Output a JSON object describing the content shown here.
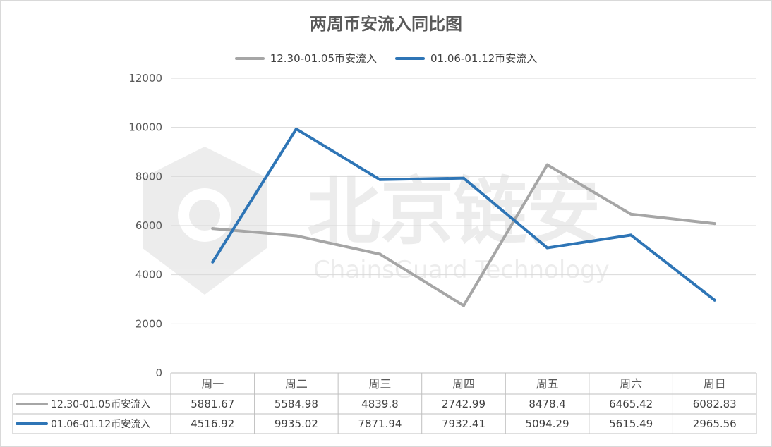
{
  "chart_data": {
    "type": "line",
    "title": "两周币安流入同比图",
    "categories": [
      "周一",
      "周二",
      "周三",
      "周四",
      "周五",
      "周六",
      "周日"
    ],
    "series": [
      {
        "name": "12.30-01.05币安流入",
        "color": "#a6a6a6",
        "values": [
          5881.67,
          5584.98,
          4839.8,
          2742.99,
          8478.4,
          6465.42,
          6082.83
        ]
      },
      {
        "name": "01.06-01.12币安流入",
        "color": "#2e75b6",
        "values": [
          4516.92,
          9935.02,
          7871.94,
          7932.41,
          5094.29,
          5615.49,
          2965.56
        ]
      }
    ],
    "yticks": [
      "0",
      "2000",
      "4000",
      "6000",
      "8000",
      "10000",
      "12000"
    ],
    "ylim": [
      0,
      12000
    ],
    "legend_position": "top",
    "grid": true,
    "data_table": true
  },
  "watermark": {
    "cn": "北京链安",
    "en": "ChainsGuard Technology",
    "logo_icon": "shield-hexagon-icon"
  }
}
